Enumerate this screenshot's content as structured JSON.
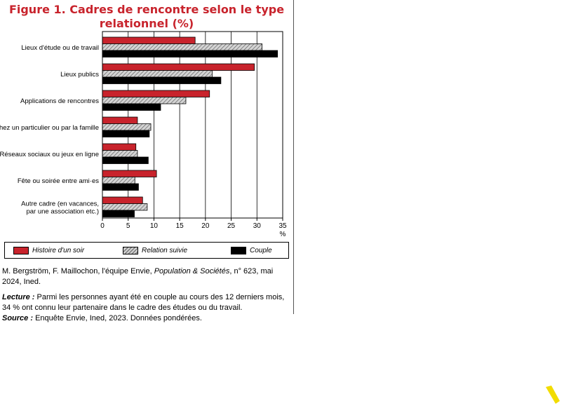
{
  "chart_data": {
    "type": "bar",
    "orientation": "horizontal",
    "title": "Figure 1. Cadres de rencontre selon le type relationnel (%)",
    "categories": [
      "Lieux d'étude ou de travail",
      "Lieux publics",
      "Applications de rencontres",
      "Chez un particulier ou par la famille",
      "Réseaux sociaux ou jeux en ligne",
      "Fête ou soirée entre ami·es",
      "Autre cadre (en vacances, par une association etc.)"
    ],
    "series": [
      {
        "name": "Histoire d'un soir",
        "color": "#c8232c",
        "values": [
          18,
          29.5,
          20.8,
          6.8,
          6.5,
          10.5,
          7.8
        ]
      },
      {
        "name": "Relation suivie",
        "color": "#b0b0b0",
        "values": [
          31,
          21.3,
          16.2,
          9.4,
          6.8,
          6.3,
          8.7
        ]
      },
      {
        "name": "Couple",
        "color": "#000000",
        "values": [
          34,
          23,
          11.3,
          9.1,
          8.9,
          7,
          6.2
        ]
      }
    ],
    "xlim": [
      0,
      35
    ],
    "xticks": [
      0,
      5,
      10,
      15,
      20,
      25,
      30,
      35
    ],
    "xunit": "%",
    "grid": true,
    "legend_position": "bottom"
  },
  "category_lines": [
    [
      "Lieux d'étude ou de travail"
    ],
    [
      "Lieux publics"
    ],
    [
      "Applications de rencontres"
    ],
    [
      "Chez un particulier ou par la famille"
    ],
    [
      "Réseaux sociaux ou jeux en ligne"
    ],
    [
      "Fête ou soirée entre ami·es"
    ],
    [
      "Autre cadre (en vacances,",
      "par une association etc.)"
    ]
  ],
  "footer": {
    "source_authors": "M. Bergström, F. Maillochon, l'équipe Envie, ",
    "source_journal": "Population & Sociétés",
    "source_rest": ", n° 623, mai 2024, Ined.",
    "lecture_label": "Lecture :",
    "lecture_text": " Parmi les personnes ayant été en couple au cours des 12 derniers mois, 34 % ont connu leur partenaire dans le cadre des études ou du travail.",
    "source_label": "Source :",
    "source_text": " Enquête Envie, Ined, 2023. Données pondérées."
  },
  "colors": {
    "accent_red": "#c8232c",
    "corner_mark": "#f2dc00"
  }
}
